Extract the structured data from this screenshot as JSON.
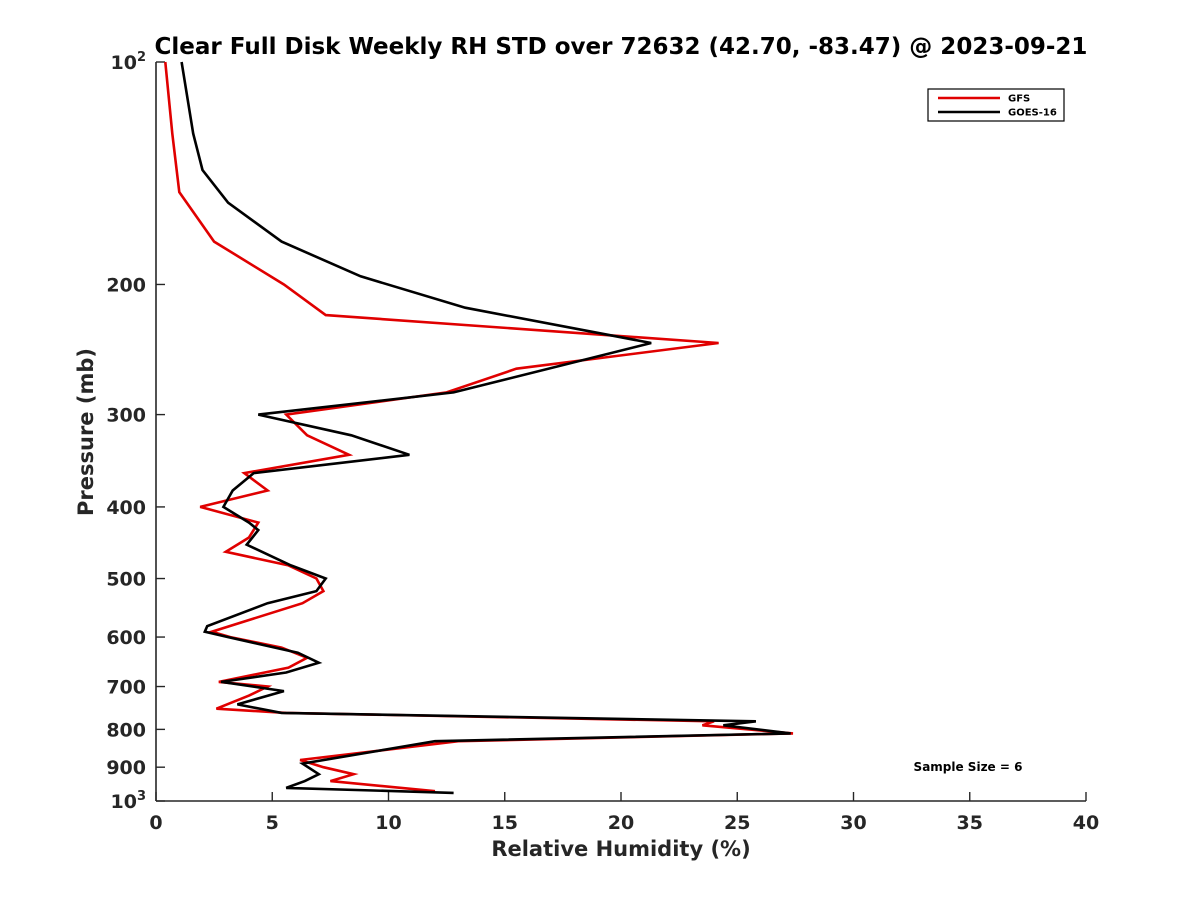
{
  "chart_data": {
    "type": "line",
    "title": "Clear Full Disk Weekly RH STD over 72632 (42.70, -83.47) @ 2023-09-21",
    "xlabel": "Relative Humidity (%)",
    "ylabel": "Pressure (mb)",
    "xlim": [
      0,
      40
    ],
    "ylim": [
      100,
      1000
    ],
    "y_scale": "log",
    "y_reversed": true,
    "x_ticks": [
      "0",
      "5",
      "10",
      "15",
      "20",
      "25",
      "30",
      "35",
      "40"
    ],
    "y_ticks": [
      {
        "value": 100,
        "base": "10",
        "exp": "2"
      },
      {
        "value": 200,
        "label": "200"
      },
      {
        "value": 300,
        "label": "300"
      },
      {
        "value": 400,
        "label": "400"
      },
      {
        "value": 500,
        "label": "500"
      },
      {
        "value": 600,
        "label": "600"
      },
      {
        "value": 700,
        "label": "700"
      },
      {
        "value": 800,
        "label": "800"
      },
      {
        "value": 900,
        "label": "900"
      },
      {
        "value": 1000,
        "base": "10",
        "exp": "3"
      }
    ],
    "grid": false,
    "legend_position": "top-right",
    "annotation": "Sample Size = 6",
    "series": [
      {
        "name": "GFS",
        "color": "#e00000",
        "points": [
          [
            0.4,
            100
          ],
          [
            0.7,
            125
          ],
          [
            1.0,
            150
          ],
          [
            2.5,
            175
          ],
          [
            5.5,
            200
          ],
          [
            7.3,
            220
          ],
          [
            24.2,
            240
          ],
          [
            15.5,
            260
          ],
          [
            12.5,
            280
          ],
          [
            5.6,
            300
          ],
          [
            6.5,
            320
          ],
          [
            8.3,
            340
          ],
          [
            3.8,
            360
          ],
          [
            4.8,
            380
          ],
          [
            1.9,
            400
          ],
          [
            4.4,
            420
          ],
          [
            4.0,
            440
          ],
          [
            3.0,
            460
          ],
          [
            5.7,
            480
          ],
          [
            6.9,
            500
          ],
          [
            7.2,
            520
          ],
          [
            6.3,
            540
          ],
          [
            2.4,
            590
          ],
          [
            3.2,
            600
          ],
          [
            5.4,
            620
          ],
          [
            6.5,
            640
          ],
          [
            5.7,
            660
          ],
          [
            2.7,
            690
          ],
          [
            4.8,
            700
          ],
          [
            4.0,
            720
          ],
          [
            2.6,
            750
          ],
          [
            5.6,
            760
          ],
          [
            24.0,
            780
          ],
          [
            23.5,
            790
          ],
          [
            27.4,
            810
          ],
          [
            13.0,
            830
          ],
          [
            6.2,
            880
          ],
          [
            7.2,
            900
          ],
          [
            8.5,
            920
          ],
          [
            7.5,
            940
          ],
          [
            12.0,
            970
          ]
        ]
      },
      {
        "name": "GOES-16",
        "color": "#000000",
        "points": [
          [
            1.1,
            100
          ],
          [
            1.6,
            125
          ],
          [
            2.0,
            140
          ],
          [
            3.1,
            155
          ],
          [
            5.4,
            175
          ],
          [
            8.8,
            195
          ],
          [
            13.3,
            215
          ],
          [
            21.3,
            240
          ],
          [
            12.8,
            280
          ],
          [
            4.4,
            300
          ],
          [
            8.4,
            320
          ],
          [
            10.9,
            340
          ],
          [
            4.2,
            360
          ],
          [
            3.3,
            380
          ],
          [
            2.9,
            400
          ],
          [
            4.0,
            420
          ],
          [
            4.4,
            430
          ],
          [
            3.9,
            450
          ],
          [
            5.8,
            480
          ],
          [
            7.3,
            500
          ],
          [
            6.9,
            520
          ],
          [
            4.8,
            540
          ],
          [
            2.2,
            580
          ],
          [
            2.1,
            590
          ],
          [
            3.1,
            600
          ],
          [
            6.1,
            630
          ],
          [
            7.0,
            650
          ],
          [
            5.6,
            670
          ],
          [
            2.8,
            690
          ],
          [
            5.5,
            710
          ],
          [
            3.5,
            740
          ],
          [
            5.4,
            760
          ],
          [
            25.8,
            780
          ],
          [
            24.4,
            790
          ],
          [
            27.3,
            810
          ],
          [
            12.0,
            830
          ],
          [
            6.3,
            890
          ],
          [
            7.0,
            920
          ],
          [
            6.4,
            940
          ],
          [
            5.6,
            960
          ],
          [
            12.8,
            975
          ]
        ]
      }
    ]
  }
}
